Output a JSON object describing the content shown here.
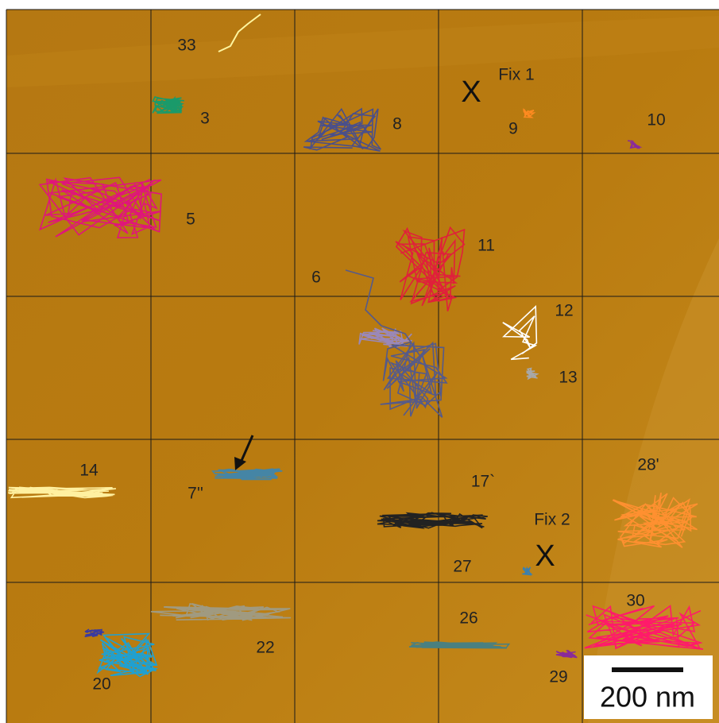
{
  "labels": [
    "33",
    "3",
    "8",
    "Fix 1",
    "9",
    "10",
    "5",
    "11",
    "6",
    "12",
    "13",
    "14",
    "7''",
    "17`",
    "28'",
    "Fix 2",
    "27",
    "30",
    "26",
    "22",
    "20",
    "29"
  ],
  "markers": [
    "X",
    "X"
  ],
  "scale_bar": "200 nm"
}
